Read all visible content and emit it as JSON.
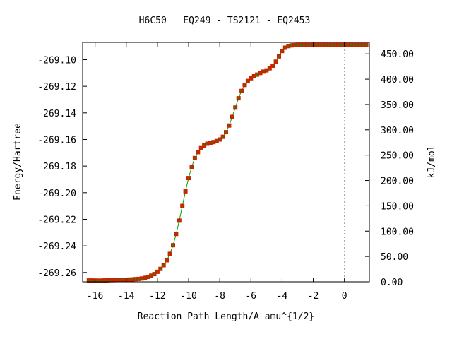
{
  "chart_data": {
    "type": "scatter",
    "title": "H6C50   EQ249 - TS2121 - EQ2453",
    "xlabel": "Reaction Path Length/A amu^{1/2}",
    "ylabel": "Energy/Hartree",
    "y2label": "kJ/mol",
    "xlim": [
      -16.8,
      1.6
    ],
    "ylim": [
      -269.267,
      -269.087
    ],
    "y2lim": [
      0,
      472.6
    ],
    "x_ticks": [
      -16,
      -14,
      -12,
      -10,
      -8,
      -6,
      -4,
      -2,
      0
    ],
    "x_tick_labels": [
      "-16",
      "-14",
      "-12",
      "-10",
      "-8",
      "-6",
      "-4",
      "-2",
      "0"
    ],
    "y_ticks": [
      -269.26,
      -269.24,
      -269.22,
      -269.2,
      -269.18,
      -269.16,
      -269.14,
      -269.12,
      -269.1
    ],
    "y_tick_labels": [
      "-269.26",
      "-269.24",
      "-269.22",
      "-269.20",
      "-269.18",
      "-269.16",
      "-269.14",
      "-269.12",
      "-269.10"
    ],
    "y2_ticks": [
      0,
      50,
      100,
      150,
      200,
      250,
      300,
      350,
      400,
      450
    ],
    "y2_tick_labels": [
      "0.00",
      "50.00",
      "100.00",
      "150.00",
      "200.00",
      "250.00",
      "300.00",
      "350.00",
      "400.00",
      "450.00"
    ],
    "ts_line_x": 0,
    "grid": false,
    "colors": {
      "line": "#00a000",
      "marker": "#cc2200",
      "marker_center": "#228800",
      "ts_line": "#999999",
      "axis": "#000000"
    },
    "series": [
      {
        "x": [
          -16.4,
          -16.2,
          -16.0,
          -15.8,
          -15.6,
          -15.4,
          -15.2,
          -15.0,
          -14.8,
          -14.6,
          -14.4,
          -14.2,
          -14.0,
          -13.8,
          -13.6,
          -13.4,
          -13.2,
          -13.0,
          -12.8,
          -12.6,
          -12.4,
          -12.2,
          -12.0,
          -11.8,
          -11.6,
          -11.4,
          -11.2,
          -11.0,
          -10.8,
          -10.6,
          -10.4,
          -10.2,
          -10.0,
          -9.8,
          -9.6,
          -9.4,
          -9.2,
          -9.0,
          -8.8,
          -8.6,
          -8.4,
          -8.2,
          -8.0,
          -7.8,
          -7.6,
          -7.4,
          -7.2,
          -7.0,
          -6.8,
          -6.6,
          -6.4,
          -6.2,
          -6.0,
          -5.8,
          -5.6,
          -5.4,
          -5.2,
          -5.0,
          -4.8,
          -4.6,
          -4.4,
          -4.2,
          -4.0,
          -3.8,
          -3.6,
          -3.4,
          -3.2,
          -3.0,
          -2.8,
          -2.6,
          -2.4,
          -2.2,
          -2.0,
          -1.8,
          -1.6,
          -1.4,
          -1.2,
          -1.0,
          -0.8,
          -0.6,
          -0.4,
          -0.2,
          0.0,
          0.2,
          0.4,
          0.6,
          0.8,
          1.0,
          1.2,
          1.4
        ],
        "y": [
          -269.266,
          -269.266,
          -269.2661,
          -269.2661,
          -269.2661,
          -269.266,
          -269.2659,
          -269.2658,
          -269.2657,
          -269.2656,
          -269.2655,
          -269.2654,
          -269.2654,
          -269.2653,
          -269.2652,
          -269.265,
          -269.2648,
          -269.2645,
          -269.264,
          -269.2633,
          -269.2624,
          -269.2612,
          -269.2595,
          -269.2573,
          -269.2545,
          -269.2508,
          -269.246,
          -269.2395,
          -269.231,
          -269.221,
          -269.21,
          -269.199,
          -269.189,
          -269.1805,
          -269.174,
          -269.1695,
          -269.1665,
          -269.1645,
          -269.1632,
          -269.1625,
          -269.162,
          -269.1612,
          -269.16,
          -269.158,
          -269.1545,
          -269.1495,
          -269.143,
          -269.136,
          -269.129,
          -269.1235,
          -269.119,
          -269.116,
          -269.114,
          -269.1125,
          -269.1112,
          -269.11,
          -269.109,
          -269.108,
          -269.1065,
          -269.1045,
          -269.1015,
          -269.0975,
          -269.0935,
          -269.091,
          -269.0898,
          -269.0893,
          -269.0891,
          -269.089,
          -269.089,
          -269.089,
          -269.089,
          -269.089,
          -269.089,
          -269.089,
          -269.089,
          -269.089,
          -269.089,
          -269.089,
          -269.089,
          -269.089,
          -269.089,
          -269.089,
          -269.089,
          -269.089,
          -269.089,
          -269.089,
          -269.089,
          -269.089,
          -269.089,
          -269.089
        ]
      }
    ]
  }
}
